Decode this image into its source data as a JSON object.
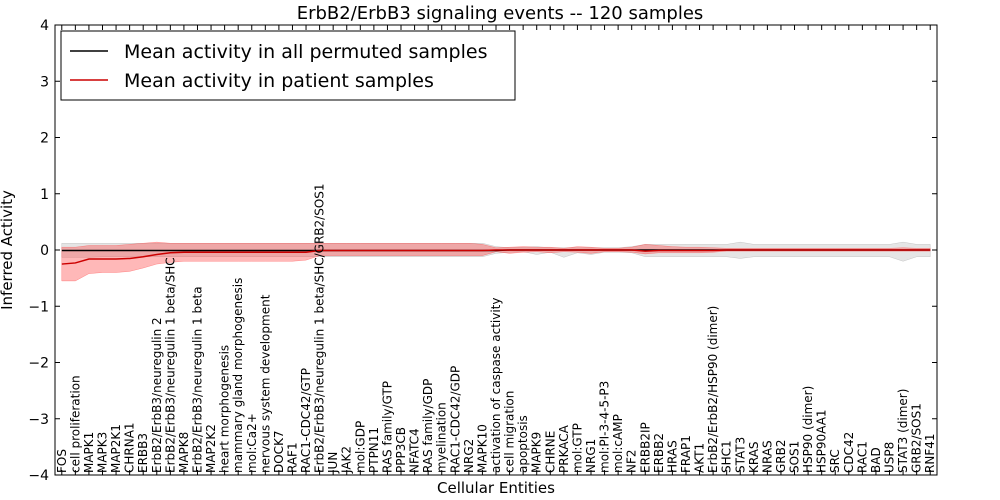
{
  "chart_data": {
    "type": "line",
    "title": "ErbB2/ErbB3 signaling events -- 120 samples",
    "xlabel": "Cellular Entities",
    "ylabel": "Inferred Activity",
    "ylim": [
      -4,
      4
    ],
    "yticks": [
      -4,
      -3,
      -2,
      -1,
      0,
      1,
      2,
      3,
      4
    ],
    "ytick_labels": [
      "−4",
      "−3",
      "−2",
      "−1",
      "0",
      "1",
      "2",
      "3",
      "4"
    ],
    "grid": false,
    "legend_position": "top-left",
    "categories": [
      "FOS",
      "cell proliferation",
      "MAPK1",
      "MAPK3",
      "MAP2K1",
      "CHRNA1",
      "ERBB3",
      "ErbB2/ErbB3/neuregulin 2",
      "ErbB2/ErbB3/neuregulin 1 beta/SHC",
      "MAPK8",
      "ErbB2/ErbB3/neuregulin 1 beta",
      "MAP2K2",
      "heart morphogenesis",
      "mammary gland morphogenesis",
      "mol:Ca2+",
      "nervous system development",
      "DOCK7",
      "RAF1",
      "RAC1-CDC42/GTP",
      "ErbB2/ErbB3/neuregulin 1 beta/SHC/GRB2/SOS1",
      "JUN",
      "JAK2",
      "mol:GDP",
      "PTPN11",
      "RAS family/GTP",
      "PPP3CB",
      "NFATC4",
      "RAS family/GDP",
      "myelination",
      "RAC1-CDC42/GDP",
      "NRG2",
      "MAPK10",
      "activation of caspase activity",
      "cell migration",
      "apoptosis",
      "MAPK9",
      "CHRNE",
      "PRKACA",
      "mol:GTP",
      "NRG1",
      "mol:PI-3-4-5-P3",
      "mol:cAMP",
      "NF2",
      "ERBB2IP",
      "ERBB2",
      "HRAS",
      "FRAP1",
      "AKT1",
      "ErbB2/ErbB2/HSP90 (dimer)",
      "SHC1",
      "STAT3",
      "KRAS",
      "NRAS",
      "GRB2",
      "SOS1",
      "HSP90 (dimer)",
      "HSP90AA1",
      "SRC",
      "CDC42",
      "RAC1",
      "BAD",
      "USP8",
      "STAT3 (dimer)",
      "GRB2/SOS1",
      "RNF41"
    ],
    "series": [
      {
        "name": "Mean activity in all permuted samples",
        "color": "#000000",
        "values": [
          -0.01,
          -0.01,
          -0.01,
          -0.01,
          -0.01,
          -0.01,
          -0.01,
          -0.01,
          -0.01,
          -0.01,
          -0.01,
          -0.01,
          -0.01,
          -0.01,
          -0.01,
          -0.01,
          -0.01,
          -0.01,
          -0.01,
          -0.01,
          -0.01,
          -0.01,
          -0.01,
          -0.01,
          -0.01,
          -0.01,
          -0.01,
          -0.01,
          -0.01,
          -0.01,
          -0.01,
          -0.01,
          -0.01,
          0.0,
          0.0,
          0.0,
          0.0,
          0.0,
          0.0,
          0.0,
          0.0,
          0.0,
          0.0,
          0.0,
          0.0,
          0.0,
          0.0,
          0.0,
          0.0,
          0.0,
          0.0,
          0.0,
          0.0,
          0.0,
          0.0,
          0.0,
          0.0,
          0.0,
          0.0,
          0.0,
          0.0,
          0.0,
          0.0,
          0.0,
          0.0
        ],
        "band_lower": [
          -0.13,
          -0.13,
          -0.13,
          -0.12,
          -0.12,
          -0.12,
          -0.12,
          -0.12,
          -0.12,
          -0.12,
          -0.12,
          -0.12,
          -0.12,
          -0.12,
          -0.12,
          -0.12,
          -0.12,
          -0.12,
          -0.12,
          -0.12,
          -0.12,
          -0.12,
          -0.12,
          -0.12,
          -0.12,
          -0.12,
          -0.12,
          -0.12,
          -0.12,
          -0.12,
          -0.12,
          -0.12,
          -0.06,
          -0.04,
          -0.03,
          -0.08,
          -0.04,
          -0.13,
          -0.05,
          -0.08,
          -0.04,
          -0.04,
          -0.05,
          -0.12,
          -0.12,
          -0.12,
          -0.12,
          -0.12,
          -0.12,
          -0.12,
          -0.15,
          -0.12,
          -0.12,
          -0.12,
          -0.12,
          -0.12,
          -0.12,
          -0.12,
          -0.12,
          -0.12,
          -0.12,
          -0.12,
          -0.2,
          -0.12,
          -0.12
        ],
        "band_upper": [
          0.12,
          0.12,
          0.12,
          0.12,
          0.12,
          0.12,
          0.12,
          0.12,
          0.12,
          0.12,
          0.12,
          0.12,
          0.12,
          0.12,
          0.12,
          0.12,
          0.12,
          0.12,
          0.12,
          0.12,
          0.12,
          0.12,
          0.12,
          0.12,
          0.12,
          0.12,
          0.12,
          0.12,
          0.12,
          0.12,
          0.12,
          0.12,
          0.06,
          0.04,
          0.05,
          0.06,
          0.04,
          0.04,
          0.04,
          0.04,
          0.04,
          0.04,
          0.06,
          0.1,
          0.1,
          0.1,
          0.1,
          0.1,
          0.1,
          0.1,
          0.14,
          0.1,
          0.1,
          0.1,
          0.1,
          0.1,
          0.1,
          0.1,
          0.1,
          0.1,
          0.1,
          0.1,
          0.14,
          0.1,
          0.1
        ]
      },
      {
        "name": "Mean activity in patient samples",
        "color": "#cc0000",
        "values": [
          -0.25,
          -0.23,
          -0.16,
          -0.16,
          -0.16,
          -0.15,
          -0.12,
          -0.08,
          -0.05,
          -0.04,
          -0.04,
          -0.04,
          -0.04,
          -0.04,
          -0.04,
          -0.04,
          -0.04,
          -0.04,
          -0.04,
          -0.01,
          -0.01,
          -0.01,
          -0.01,
          -0.01,
          -0.01,
          -0.01,
          -0.01,
          -0.01,
          -0.01,
          -0.01,
          -0.01,
          -0.01,
          0.0,
          0.0,
          0.0,
          0.0,
          0.0,
          0.0,
          0.0,
          0.0,
          0.0,
          0.0,
          0.0,
          -0.02,
          -0.01,
          -0.01,
          -0.01,
          -0.01,
          -0.01,
          0.0,
          0.0,
          0.0,
          0.0,
          0.0,
          0.0,
          0.0,
          0.0,
          0.0,
          0.0,
          0.0,
          0.0,
          0.0,
          0.0,
          0.0,
          0.0
        ],
        "band_lower": [
          -0.55,
          -0.55,
          -0.42,
          -0.4,
          -0.4,
          -0.38,
          -0.32,
          -0.25,
          -0.22,
          -0.2,
          -0.2,
          -0.2,
          -0.2,
          -0.2,
          -0.2,
          -0.2,
          -0.2,
          -0.2,
          -0.18,
          -0.1,
          -0.1,
          -0.1,
          -0.1,
          -0.1,
          -0.1,
          -0.1,
          -0.1,
          -0.1,
          -0.1,
          -0.1,
          -0.1,
          -0.1,
          -0.03,
          -0.06,
          -0.04,
          -0.03,
          -0.05,
          -0.03,
          -0.04,
          -0.06,
          -0.03,
          -0.03,
          -0.04,
          -0.07,
          -0.05,
          -0.05,
          -0.05,
          -0.05,
          -0.04,
          -0.02,
          -0.02,
          -0.02,
          -0.02,
          -0.02,
          -0.02,
          -0.02,
          -0.02,
          -0.02,
          -0.02,
          -0.02,
          -0.02,
          -0.02,
          -0.02,
          -0.02,
          -0.02
        ],
        "band_upper": [
          0.05,
          0.05,
          0.08,
          0.08,
          0.08,
          0.1,
          0.12,
          0.14,
          0.12,
          0.12,
          0.12,
          0.12,
          0.12,
          0.12,
          0.12,
          0.12,
          0.12,
          0.12,
          0.12,
          0.12,
          0.12,
          0.12,
          0.12,
          0.12,
          0.12,
          0.12,
          0.12,
          0.12,
          0.12,
          0.12,
          0.12,
          0.1,
          0.04,
          0.05,
          0.06,
          0.05,
          0.05,
          0.03,
          0.06,
          0.05,
          0.03,
          0.03,
          0.05,
          0.1,
          0.08,
          0.06,
          0.05,
          0.05,
          0.04,
          0.03,
          0.03,
          0.03,
          0.03,
          0.03,
          0.03,
          0.03,
          0.03,
          0.03,
          0.03,
          0.03,
          0.03,
          0.03,
          0.04,
          0.03,
          0.03
        ]
      }
    ]
  }
}
